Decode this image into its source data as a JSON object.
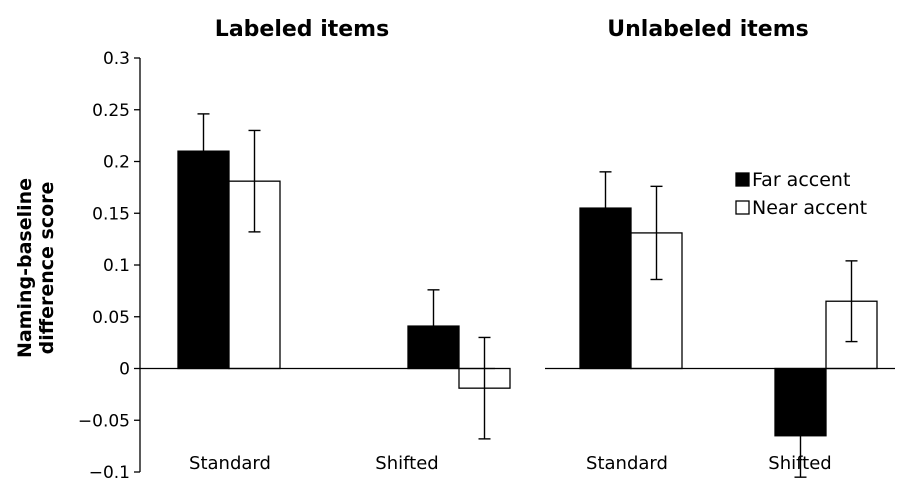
{
  "chart_data": {
    "type": "bar",
    "ylabel_lines": [
      "Naming-baseline",
      "difference score"
    ],
    "ylim": [
      -0.1,
      0.3
    ],
    "yticks": [
      -0.1,
      -0.05,
      0,
      0.05,
      0.1,
      0.15,
      0.2,
      0.25,
      0.3
    ],
    "ytick_labels": [
      "−0.1",
      "−0.05",
      "0",
      "0.05",
      "0.1",
      "0.15",
      "0.2",
      "0.25",
      "0.3"
    ],
    "legend": {
      "placement": "right",
      "entries": [
        {
          "name": "Far accent",
          "color": "#000000"
        },
        {
          "name": "Near accent",
          "color": "#ffffff"
        }
      ]
    },
    "panels": [
      {
        "title": "Labeled items",
        "categories": [
          "Standard",
          "Shifted"
        ],
        "series": [
          {
            "name": "Far accent",
            "color": "#000000",
            "values": [
              0.21,
              0.041
            ],
            "errors": [
              0.036,
              0.035
            ]
          },
          {
            "name": "Near accent",
            "color": "#ffffff",
            "values": [
              0.181,
              -0.019
            ],
            "errors": [
              0.049,
              0.049
            ]
          }
        ]
      },
      {
        "title": "Unlabeled items",
        "categories": [
          "Standard",
          "Shifted"
        ],
        "series": [
          {
            "name": "Far accent",
            "color": "#000000",
            "values": [
              0.155,
              -0.065
            ],
            "errors": [
              0.035,
              0.04
            ]
          },
          {
            "name": "Near accent",
            "color": "#ffffff",
            "values": [
              0.131,
              0.065
            ],
            "errors": [
              0.045,
              0.039
            ]
          }
        ]
      }
    ]
  }
}
